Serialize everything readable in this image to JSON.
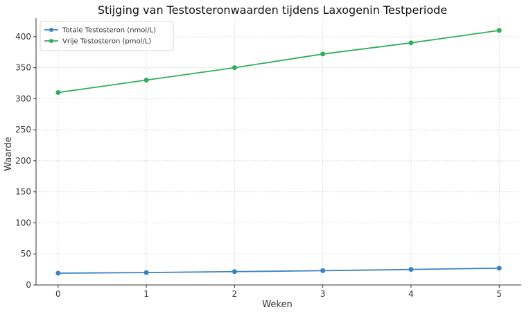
{
  "chart_data": {
    "type": "line",
    "title": "Stijging van Testosteronwaarden tijdens Laxogenin Testperiode",
    "xlabel": "Weken",
    "ylabel": "Waarde",
    "x": [
      0,
      1,
      2,
      3,
      4,
      5
    ],
    "x_ticks": [
      "0",
      "1",
      "2",
      "3",
      "4",
      "5"
    ],
    "y_ticks": [
      "0",
      "50",
      "100",
      "150",
      "200",
      "250",
      "300",
      "350",
      "400"
    ],
    "xlim": [
      -0.25,
      5.25
    ],
    "ylim": [
      0,
      430
    ],
    "grid": true,
    "legend_position": "top-left",
    "series": [
      {
        "name": "Totale Testosteron (nmol/L)",
        "color": "#3a82c4",
        "values": [
          19,
          20,
          21.5,
          23,
          25,
          27
        ]
      },
      {
        "name": "Vrije Testosteron (pmol/L)",
        "color": "#2fae5c",
        "values": [
          310,
          330,
          350,
          372,
          390,
          410
        ]
      }
    ]
  }
}
